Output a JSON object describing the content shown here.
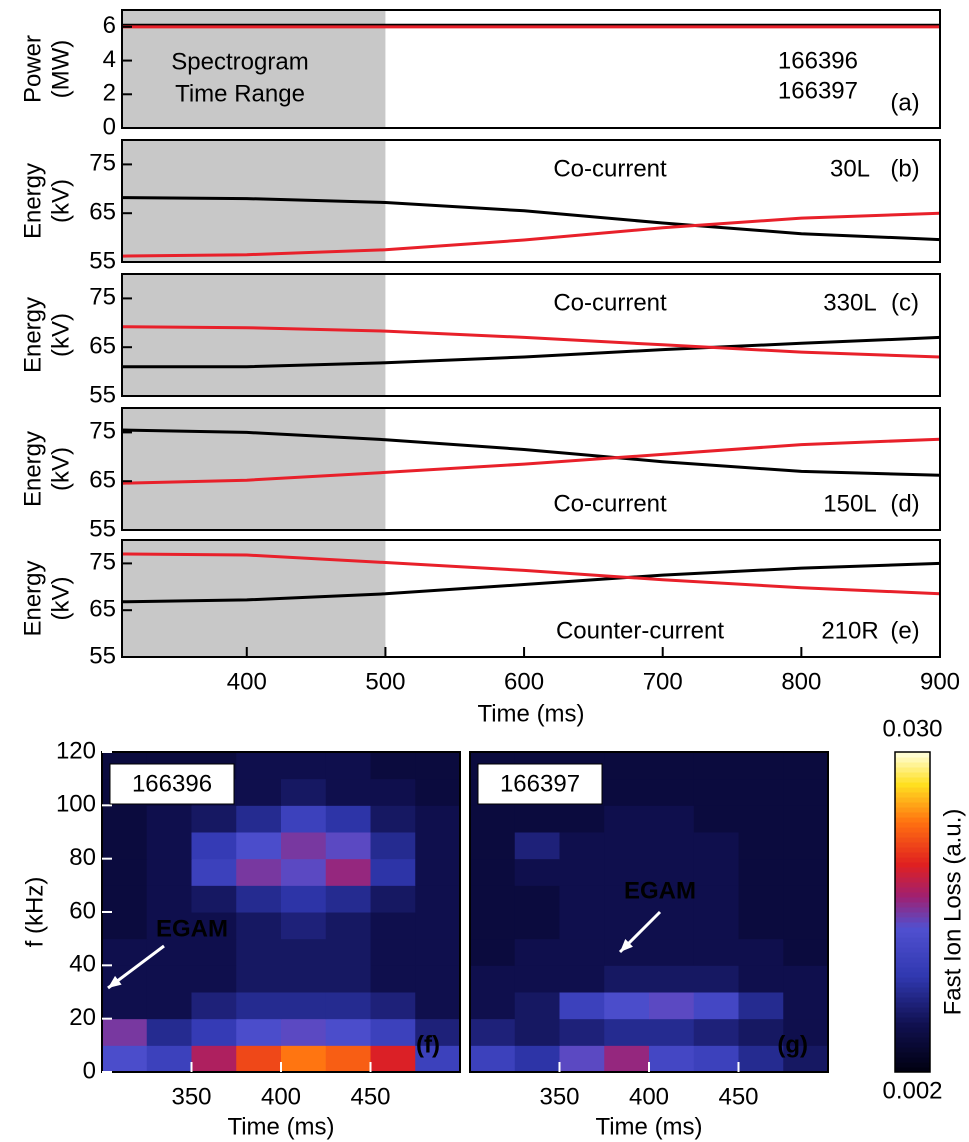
{
  "chart_data": [
    {
      "type": "line",
      "ylabel": [
        "Power",
        "(MW)"
      ],
      "xlim": [
        310,
        900
      ],
      "ylim": [
        0,
        7
      ],
      "yticks": [
        0,
        2,
        4,
        6
      ],
      "shade": [
        310,
        500
      ],
      "notes": [
        "Spectrogram",
        "Time Range",
        "(a)"
      ],
      "x": [
        310,
        400,
        500,
        600,
        700,
        800,
        900
      ],
      "series": [
        {
          "name": "166396",
          "color": "#000000",
          "values": [
            6.1,
            6.1,
            6.1,
            6.1,
            6.1,
            6.1,
            6.1
          ]
        },
        {
          "name": "166397",
          "color": "#e8202a",
          "values": [
            6.0,
            6.0,
            6.0,
            6.0,
            6.0,
            6.0,
            6.0
          ]
        }
      ]
    },
    {
      "type": "line",
      "ylabel": [
        "Energy",
        "(kV)"
      ],
      "xlim": [
        310,
        900
      ],
      "ylim": [
        55,
        80
      ],
      "yticks": [
        55,
        65,
        75
      ],
      "shade": [
        310,
        500
      ],
      "notes": [
        "Co-current",
        "30L",
        "(b)"
      ],
      "x": [
        310,
        400,
        500,
        600,
        700,
        800,
        900
      ],
      "series": [
        {
          "color": "#000000",
          "values": [
            68.2,
            68,
            67.2,
            65.5,
            63,
            60.8,
            59.6
          ]
        },
        {
          "color": "#e8202a",
          "values": [
            56.2,
            56.5,
            57.5,
            59.5,
            62,
            64,
            65
          ]
        }
      ]
    },
    {
      "type": "line",
      "ylabel": [
        "Energy",
        "(kV)"
      ],
      "xlim": [
        310,
        900
      ],
      "ylim": [
        55,
        80
      ],
      "yticks": [
        55,
        65,
        75
      ],
      "shade": [
        310,
        500
      ],
      "notes": [
        "Co-current",
        "330L",
        "(c)"
      ],
      "x": [
        310,
        400,
        500,
        600,
        700,
        800,
        900
      ],
      "series": [
        {
          "color": "#000000",
          "values": [
            61,
            61,
            61.8,
            63,
            64.5,
            65.8,
            67
          ]
        },
        {
          "color": "#e8202a",
          "values": [
            69.2,
            69,
            68.3,
            67,
            65.5,
            64,
            63
          ]
        }
      ]
    },
    {
      "type": "line",
      "ylabel": [
        "Energy",
        "(kV)"
      ],
      "xlim": [
        310,
        900
      ],
      "ylim": [
        55,
        80
      ],
      "yticks": [
        55,
        65,
        75
      ],
      "shade": [
        310,
        500
      ],
      "notes": [
        "Co-current",
        "150L",
        "(d)"
      ],
      "x": [
        310,
        400,
        500,
        600,
        700,
        800,
        900
      ],
      "series": [
        {
          "color": "#000000",
          "values": [
            75.5,
            75,
            73.5,
            71.5,
            69,
            67,
            66.2
          ]
        },
        {
          "color": "#e8202a",
          "values": [
            64.6,
            65.2,
            66.8,
            68.5,
            70.5,
            72.5,
            73.6
          ]
        }
      ]
    },
    {
      "type": "line",
      "ylabel": [
        "Energy",
        "(kV)"
      ],
      "xlim": [
        310,
        900
      ],
      "ylim": [
        55,
        80
      ],
      "yticks": [
        55,
        65,
        75
      ],
      "shade": [
        310,
        500
      ],
      "notes": [
        "Counter-current",
        "210R",
        "(e)"
      ],
      "xlabel": "Time (ms)",
      "xticks": [
        400,
        500,
        600,
        700,
        800,
        900
      ],
      "x": [
        310,
        400,
        500,
        600,
        700,
        800,
        900
      ],
      "series": [
        {
          "color": "#000000",
          "values": [
            66.8,
            67.2,
            68.5,
            70.5,
            72.5,
            74,
            75
          ]
        },
        {
          "color": "#e8202a",
          "values": [
            77,
            76.8,
            75.2,
            73.5,
            71.5,
            69.8,
            68.5
          ]
        }
      ]
    },
    {
      "type": "heatmap",
      "ylabel": "f (kHz)",
      "xlabel": "Time (ms)",
      "xlim": [
        300,
        500
      ],
      "ylim": [
        0,
        120
      ],
      "xticks": [
        350,
        400,
        450
      ],
      "yticks": [
        0,
        20,
        40,
        60,
        80,
        100,
        120
      ],
      "zlim": [
        0.002,
        0.03
      ],
      "shot": "166396",
      "shot_color": "#000000",
      "notes": [
        "EGAM",
        "(f)"
      ],
      "x_bins": [
        300,
        325,
        350,
        375,
        400,
        425,
        450,
        475,
        500
      ],
      "y_bins": [
        0,
        10,
        20,
        30,
        40,
        50,
        60,
        70,
        80,
        90,
        100,
        110,
        120
      ],
      "z": [
        [
          0.014,
          0.012,
          0.018,
          0.022,
          0.024,
          0.023,
          0.02,
          0.012
        ],
        [
          0.016,
          0.009,
          0.011,
          0.014,
          0.015,
          0.014,
          0.012,
          0.008
        ],
        [
          0.006,
          0.006,
          0.008,
          0.009,
          0.009,
          0.009,
          0.008,
          0.006
        ],
        [
          0.006,
          0.006,
          0.006,
          0.007,
          0.007,
          0.007,
          0.006,
          0.006
        ],
        [
          0.006,
          0.006,
          0.006,
          0.007,
          0.007,
          0.007,
          0.006,
          0.006
        ],
        [
          0.005,
          0.006,
          0.006,
          0.007,
          0.008,
          0.007,
          0.006,
          0.006
        ],
        [
          0.005,
          0.006,
          0.007,
          0.009,
          0.01,
          0.009,
          0.007,
          0.006
        ],
        [
          0.005,
          0.006,
          0.012,
          0.016,
          0.015,
          0.017,
          0.01,
          0.006
        ],
        [
          0.005,
          0.006,
          0.011,
          0.014,
          0.016,
          0.015,
          0.009,
          0.006
        ],
        [
          0.005,
          0.006,
          0.007,
          0.009,
          0.012,
          0.01,
          0.007,
          0.006
        ],
        [
          0.005,
          0.005,
          0.006,
          0.006,
          0.007,
          0.006,
          0.006,
          0.005
        ],
        [
          0.005,
          0.005,
          0.005,
          0.006,
          0.006,
          0.006,
          0.005,
          0.005
        ]
      ]
    },
    {
      "type": "heatmap",
      "xlabel": "Time (ms)",
      "xlim": [
        300,
        500
      ],
      "ylim": [
        0,
        120
      ],
      "xticks": [
        350,
        400,
        450
      ],
      "zlim": [
        0.002,
        0.03
      ],
      "shot": "166397",
      "shot_color": "#e8202a",
      "notes": [
        "EGAM",
        "(g)"
      ],
      "colorbar": {
        "label": "Fast Ion Loss (a.u.)",
        "ticks": [
          0.002,
          {
            "value": 0.03,
            "label": "0.030"
          }
        ]
      },
      "x_bins": [
        300,
        325,
        350,
        375,
        400,
        425,
        450,
        475,
        500
      ],
      "y_bins": [
        0,
        10,
        20,
        30,
        40,
        50,
        60,
        70,
        80,
        90,
        100,
        110,
        120
      ],
      "z": [
        [
          0.012,
          0.01,
          0.015,
          0.017,
          0.013,
          0.012,
          0.009,
          0.007
        ],
        [
          0.008,
          0.007,
          0.008,
          0.009,
          0.009,
          0.008,
          0.007,
          0.006
        ],
        [
          0.006,
          0.007,
          0.012,
          0.014,
          0.015,
          0.013,
          0.009,
          0.006
        ],
        [
          0.006,
          0.006,
          0.006,
          0.007,
          0.007,
          0.007,
          0.006,
          0.006
        ],
        [
          0.005,
          0.006,
          0.006,
          0.006,
          0.006,
          0.006,
          0.006,
          0.005
        ],
        [
          0.005,
          0.005,
          0.006,
          0.006,
          0.006,
          0.006,
          0.005,
          0.005
        ],
        [
          0.005,
          0.005,
          0.006,
          0.006,
          0.006,
          0.006,
          0.005,
          0.005
        ],
        [
          0.005,
          0.006,
          0.006,
          0.006,
          0.006,
          0.006,
          0.005,
          0.005
        ],
        [
          0.005,
          0.008,
          0.006,
          0.006,
          0.006,
          0.006,
          0.005,
          0.005
        ],
        [
          0.005,
          0.005,
          0.005,
          0.006,
          0.006,
          0.005,
          0.005,
          0.005
        ],
        [
          0.005,
          0.005,
          0.005,
          0.005,
          0.005,
          0.005,
          0.005,
          0.005
        ],
        [
          0.005,
          0.005,
          0.005,
          0.005,
          0.005,
          0.005,
          0.005,
          0.005
        ]
      ]
    }
  ]
}
